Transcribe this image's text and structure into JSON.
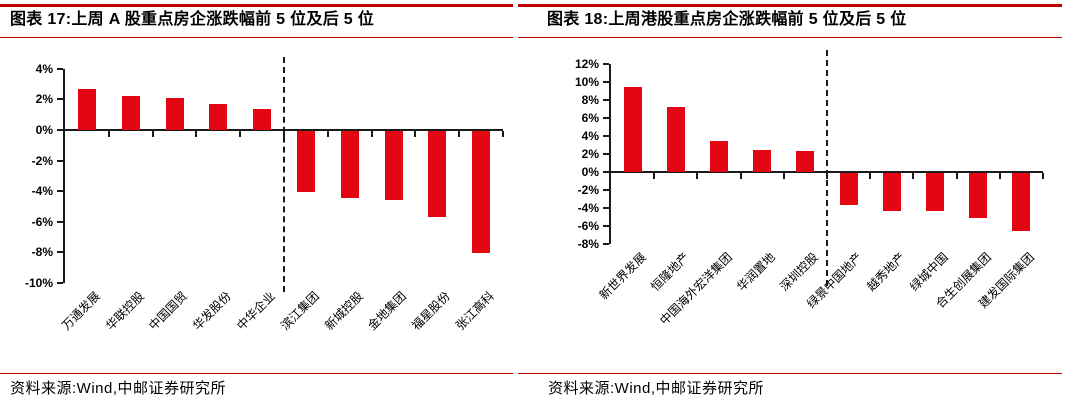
{
  "colors": {
    "bar_red": "#e30613",
    "rule_red": "#c00000",
    "axis_black": "#1a1a1a"
  },
  "charts": [
    {
      "title": "图表 17:上周 A 股重点房企涨跌幅前 5 位及后 5 位",
      "source": "资料来源:Wind,中邮证券研究所",
      "chart_data": {
        "type": "bar",
        "title": "上周A股重点房企涨跌幅前5位及后5位",
        "categories": [
          "万通发展",
          "华联控股",
          "中国国贸",
          "华发股份",
          "中华企业",
          "滨江集团",
          "新城控股",
          "金地集团",
          "福星股份",
          "张江高科"
        ],
        "values": [
          2.7,
          2.2,
          2.1,
          1.7,
          1.4,
          -4.0,
          -4.4,
          -4.5,
          -5.6,
          -8.0
        ],
        "xlabel": "",
        "ylabel": "",
        "ylim": [
          -10,
          4
        ],
        "yticks": [
          4,
          2,
          0,
          -2,
          -4,
          -6,
          -8,
          -10
        ],
        "ytick_suffix": "%",
        "separator_after_index": 4,
        "grid": false,
        "legend": false,
        "bar_color": "#e30613"
      }
    },
    {
      "title": "图表 18:上周港股重点房企涨跌幅前 5 位及后 5 位",
      "source": "资料来源:Wind,中邮证券研究所",
      "chart_data": {
        "type": "bar",
        "title": "上周港股重点房企涨跌幅前5位及后5位",
        "categories": [
          "新世界发展",
          "恒隆地产",
          "中国海外宏洋集团",
          "华润置地",
          "深圳控股",
          "绿景中国地产",
          "越秀地产",
          "绿城中国",
          "合生创展集团",
          "建发国际集团"
        ],
        "values": [
          9.4,
          7.2,
          3.5,
          2.4,
          2.3,
          -3.6,
          -4.2,
          -4.2,
          -5.0,
          -6.4
        ],
        "xlabel": "",
        "ylabel": "",
        "ylim": [
          -8,
          12
        ],
        "yticks": [
          12,
          10,
          8,
          6,
          4,
          2,
          0,
          -2,
          -4,
          -6,
          -8
        ],
        "ytick_suffix": "%",
        "separator_after_index": 4,
        "grid": false,
        "legend": false,
        "bar_color": "#e30613"
      }
    }
  ]
}
